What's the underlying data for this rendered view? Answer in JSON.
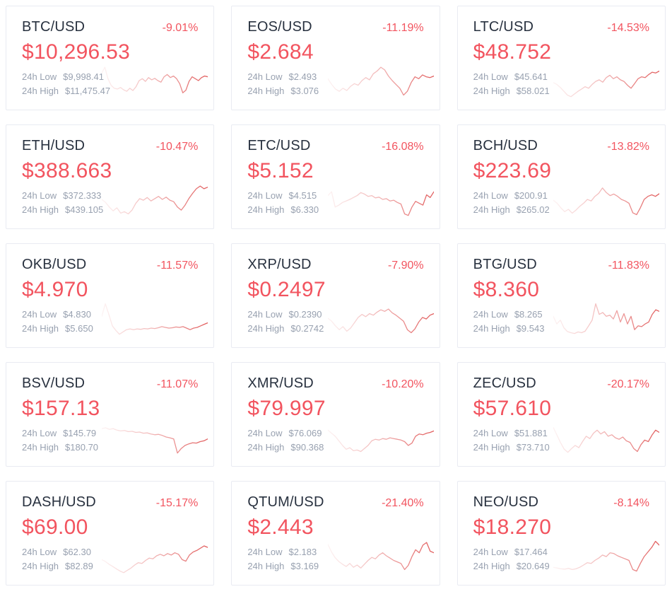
{
  "labels": {
    "low": "24h Low",
    "high": "24h High"
  },
  "colors": {
    "pair_text": "#28313f",
    "negative": "#f2545f",
    "muted": "#98a1b0",
    "card_border": "#e9ebf2",
    "spark": "#e05555"
  },
  "chart_data": {
    "type": "line",
    "note": "per-card 24h price sparklines, values normalized 0-100 between 24h low and high, stored in cards[].sparkline"
  },
  "cards": [
    {
      "pair": "BTC/USD",
      "change": "-9.01%",
      "price": "$10,296.53",
      "low": "$9,998.41",
      "high": "$11,475.47",
      "sparkline": [
        70,
        85,
        55,
        38,
        30,
        28,
        32,
        26,
        22,
        30,
        24,
        34,
        50,
        55,
        48,
        58,
        52,
        56,
        50,
        46,
        60,
        66,
        58,
        62,
        55,
        42,
        18,
        25,
        48,
        60,
        55,
        50,
        58,
        62,
        60
      ]
    },
    {
      "pair": "EOS/USD",
      "change": "-11.19%",
      "price": "$2.684",
      "low": "$2.493",
      "high": "$3.076",
      "sparkline": [
        55,
        40,
        28,
        22,
        30,
        24,
        35,
        42,
        38,
        50,
        58,
        52,
        68,
        75,
        85,
        78,
        62,
        50,
        40,
        30,
        12,
        22,
        45,
        60,
        55,
        65,
        60,
        58,
        62
      ]
    },
    {
      "pair": "LTC/USD",
      "change": "-14.53%",
      "price": "$48.752",
      "low": "$45.641",
      "high": "$58.021",
      "sparkline": [
        45,
        40,
        32,
        22,
        12,
        8,
        15,
        22,
        28,
        34,
        30,
        40,
        48,
        52,
        46,
        58,
        64,
        55,
        60,
        52,
        48,
        38,
        30,
        42,
        55,
        60,
        58,
        66,
        72,
        70,
        75
      ]
    },
    {
      "pair": "ETH/USD",
      "change": "-10.47%",
      "price": "$388.663",
      "low": "$372.333",
      "high": "$439.105",
      "sparkline": [
        50,
        42,
        30,
        20,
        28,
        14,
        18,
        12,
        22,
        40,
        52,
        48,
        55,
        46,
        52,
        58,
        50,
        56,
        48,
        44,
        30,
        22,
        35,
        52,
        66,
        78,
        85,
        78,
        82
      ]
    },
    {
      "pair": "ETC/USD",
      "change": "-16.08%",
      "price": "$5.152",
      "low": "$4.515",
      "high": "$6.330",
      "sparkline": [
        60,
        70,
        30,
        35,
        42,
        46,
        50,
        55,
        60,
        68,
        64,
        58,
        60,
        54,
        56,
        50,
        52,
        46,
        48,
        42,
        38,
        12,
        8,
        30,
        45,
        40,
        35,
        62,
        55,
        70
      ]
    },
    {
      "pair": "BCH/USD",
      "change": "-13.82%",
      "price": "$223.69",
      "low": "$200.91",
      "high": "$265.02",
      "sparkline": [
        48,
        40,
        28,
        18,
        24,
        14,
        22,
        32,
        40,
        50,
        46,
        58,
        66,
        80,
        68,
        60,
        64,
        58,
        50,
        46,
        40,
        15,
        10,
        28,
        50,
        58,
        62,
        58,
        65
      ]
    },
    {
      "pair": "OKB/USD",
      "change": "-11.57%",
      "price": "$4.970",
      "low": "$4.830",
      "high": "$5.650",
      "sparkline": [
        55,
        88,
        60,
        30,
        18,
        8,
        14,
        20,
        22,
        20,
        22,
        21,
        23,
        22,
        24,
        23,
        25,
        28,
        26,
        24,
        25,
        27,
        26,
        28,
        24,
        20,
        24,
        26,
        30,
        34,
        38
      ]
    },
    {
      "pair": "XRP/USD",
      "change": "-7.90%",
      "price": "$0.2497",
      "low": "$0.2390",
      "high": "$0.2742",
      "sparkline": [
        50,
        42,
        30,
        20,
        28,
        16,
        24,
        38,
        52,
        60,
        54,
        62,
        58,
        66,
        72,
        68,
        74,
        64,
        58,
        50,
        42,
        20,
        12,
        22,
        40,
        52,
        48,
        58,
        62
      ]
    },
    {
      "pair": "BTG/USD",
      "change": "-11.83%",
      "price": "$8.360",
      "low": "$8.265",
      "high": "$9.543",
      "sparkline": [
        55,
        35,
        45,
        25,
        15,
        12,
        10,
        14,
        12,
        16,
        30,
        45,
        88,
        60,
        65,
        55,
        58,
        48,
        70,
        40,
        62,
        35,
        55,
        20,
        30,
        28,
        35,
        40,
        60,
        72,
        68
      ]
    },
    {
      "pair": "BSV/USD",
      "change": "-11.07%",
      "price": "$157.13",
      "low": "$145.79",
      "high": "$180.70",
      "sparkline": [
        72,
        74,
        70,
        72,
        68,
        66,
        67,
        64,
        65,
        62,
        63,
        60,
        61,
        58,
        56,
        57,
        54,
        50,
        48,
        45,
        8,
        20,
        28,
        32,
        35,
        34,
        38,
        40,
        45
      ]
    },
    {
      "pair": "XMR/USD",
      "change": "-10.20%",
      "price": "$79.997",
      "low": "$76.069",
      "high": "$90.368",
      "sparkline": [
        68,
        60,
        52,
        40,
        28,
        18,
        22,
        14,
        16,
        12,
        20,
        28,
        40,
        44,
        42,
        46,
        44,
        48,
        46,
        44,
        42,
        38,
        28,
        34,
        52,
        58,
        56,
        60,
        62,
        66
      ]
    },
    {
      "pair": "ZEC/USD",
      "change": "-20.17%",
      "price": "$57.610",
      "low": "$51.881",
      "high": "$73.710",
      "sparkline": [
        75,
        55,
        35,
        18,
        10,
        20,
        28,
        22,
        38,
        52,
        46,
        60,
        68,
        58,
        64,
        52,
        56,
        48,
        44,
        50,
        40,
        36,
        20,
        12,
        30,
        42,
        38,
        55,
        68,
        62
      ]
    },
    {
      "pair": "DASH/USD",
      "change": "-15.17%",
      "price": "$69.00",
      "low": "$62.30",
      "high": "$82.89",
      "sparkline": [
        40,
        35,
        28,
        22,
        16,
        10,
        6,
        12,
        18,
        26,
        32,
        30,
        38,
        44,
        42,
        50,
        54,
        50,
        56,
        52,
        58,
        54,
        40,
        36,
        52,
        60,
        64,
        70,
        76,
        72
      ]
    },
    {
      "pair": "QTUM/USD",
      "change": "-21.40%",
      "price": "$2.443",
      "low": "$2.183",
      "high": "$3.169",
      "sparkline": [
        80,
        60,
        45,
        35,
        28,
        22,
        30,
        20,
        26,
        18,
        28,
        38,
        46,
        42,
        52,
        58,
        50,
        44,
        38,
        34,
        30,
        14,
        25,
        48,
        66,
        58,
        78,
        85,
        62,
        58
      ]
    },
    {
      "pair": "NEO/USD",
      "change": "-8.14%",
      "price": "$18.270",
      "low": "$17.464",
      "high": "$20.649",
      "sparkline": [
        20,
        18,
        16,
        15,
        17,
        14,
        16,
        20,
        26,
        32,
        30,
        38,
        44,
        52,
        48,
        58,
        56,
        50,
        46,
        42,
        38,
        14,
        10,
        30,
        48,
        60,
        72,
        88,
        78
      ]
    }
  ]
}
